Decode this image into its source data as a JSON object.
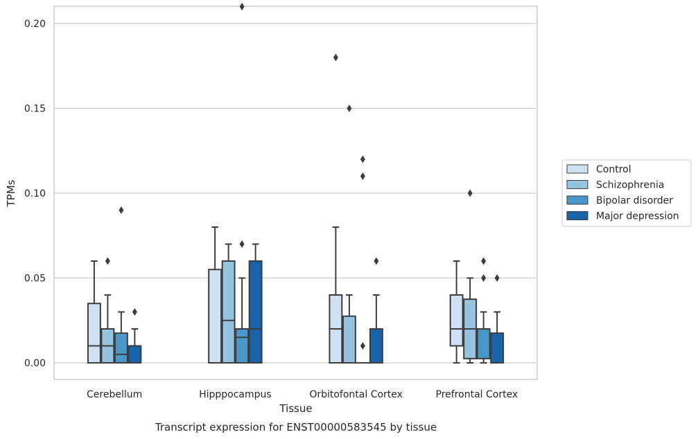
{
  "chart_data": {
    "type": "box",
    "caption": "Transcript expression for ENST00000583545 by tissue",
    "xlabel": "Tissue",
    "ylabel": "TPMs",
    "ylim": [
      -0.01,
      0.22
    ],
    "yticks": [
      0.0,
      0.05,
      0.1,
      0.15,
      0.2
    ],
    "ytick_labels": [
      "0.00",
      "0.05",
      "0.10",
      "0.15",
      "0.20"
    ],
    "grid": "horizontal",
    "legend_position": "right",
    "categories": [
      "Cerebellum",
      "Hipppocampus",
      "Orbitofontal Cortex",
      "Prefrontal Cortex"
    ],
    "series": [
      {
        "name": "Control",
        "color": "#d0e1f2",
        "boxes": [
          {
            "min": 0.0,
            "q1": 0.0,
            "median": 0.01,
            "q3": 0.035,
            "max": 0.06,
            "outliers": []
          },
          {
            "min": 0.0,
            "q1": 0.0,
            "median": 0.0,
            "q3": 0.055,
            "max": 0.08,
            "outliers": []
          },
          {
            "min": 0.0,
            "q1": 0.0,
            "median": 0.02,
            "q3": 0.04,
            "max": 0.08,
            "outliers": [
              0.18
            ]
          },
          {
            "min": 0.0,
            "q1": 0.01,
            "median": 0.02,
            "q3": 0.04,
            "max": 0.06,
            "outliers": []
          }
        ]
      },
      {
        "name": "Schizophrenia",
        "color": "#94c4df",
        "boxes": [
          {
            "min": 0.0,
            "q1": 0.0,
            "median": 0.01,
            "q3": 0.02,
            "max": 0.04,
            "outliers": [
              0.06
            ]
          },
          {
            "min": 0.0,
            "q1": 0.0,
            "median": 0.025,
            "q3": 0.06,
            "max": 0.07,
            "outliers": []
          },
          {
            "min": 0.0,
            "q1": 0.0,
            "median": 0.0,
            "q3": 0.0275,
            "max": 0.04,
            "outliers": [
              0.15
            ]
          },
          {
            "min": 0.0,
            "q1": 0.0025,
            "median": 0.02,
            "q3": 0.0375,
            "max": 0.05,
            "outliers": [
              0.1
            ]
          }
        ]
      },
      {
        "name": "Bipolar disorder",
        "color": "#4a98c9",
        "boxes": [
          {
            "min": 0.0,
            "q1": 0.0,
            "median": 0.005,
            "q3": 0.0175,
            "max": 0.03,
            "outliers": [
              0.09
            ]
          },
          {
            "min": 0.0,
            "q1": 0.0,
            "median": 0.015,
            "q3": 0.02,
            "max": 0.05,
            "outliers": [
              0.07,
              0.21
            ]
          },
          {
            "min": 0.0,
            "q1": 0.0,
            "median": 0.0,
            "q3": 0.0,
            "max": 0.0,
            "outliers": [
              0.01,
              0.11,
              0.12
            ]
          },
          {
            "min": 0.0,
            "q1": 0.0025,
            "median": 0.02,
            "q3": 0.02,
            "max": 0.03,
            "outliers": [
              0.05,
              0.06
            ]
          }
        ]
      },
      {
        "name": "Major depression",
        "color": "#1764ab",
        "boxes": [
          {
            "min": 0.0,
            "q1": 0.0,
            "median": 0.01,
            "q3": 0.01,
            "max": 0.02,
            "outliers": [
              0.03
            ]
          },
          {
            "min": 0.0,
            "q1": 0.0,
            "median": 0.02,
            "q3": 0.06,
            "max": 0.07,
            "outliers": []
          },
          {
            "min": 0.0,
            "q1": 0.0,
            "median": 0.0,
            "q3": 0.02,
            "max": 0.04,
            "outliers": [
              0.06
            ]
          },
          {
            "min": 0.0,
            "q1": 0.0,
            "median": 0.0,
            "q3": 0.0175,
            "max": 0.03,
            "outliers": [
              0.05
            ]
          }
        ]
      }
    ]
  }
}
